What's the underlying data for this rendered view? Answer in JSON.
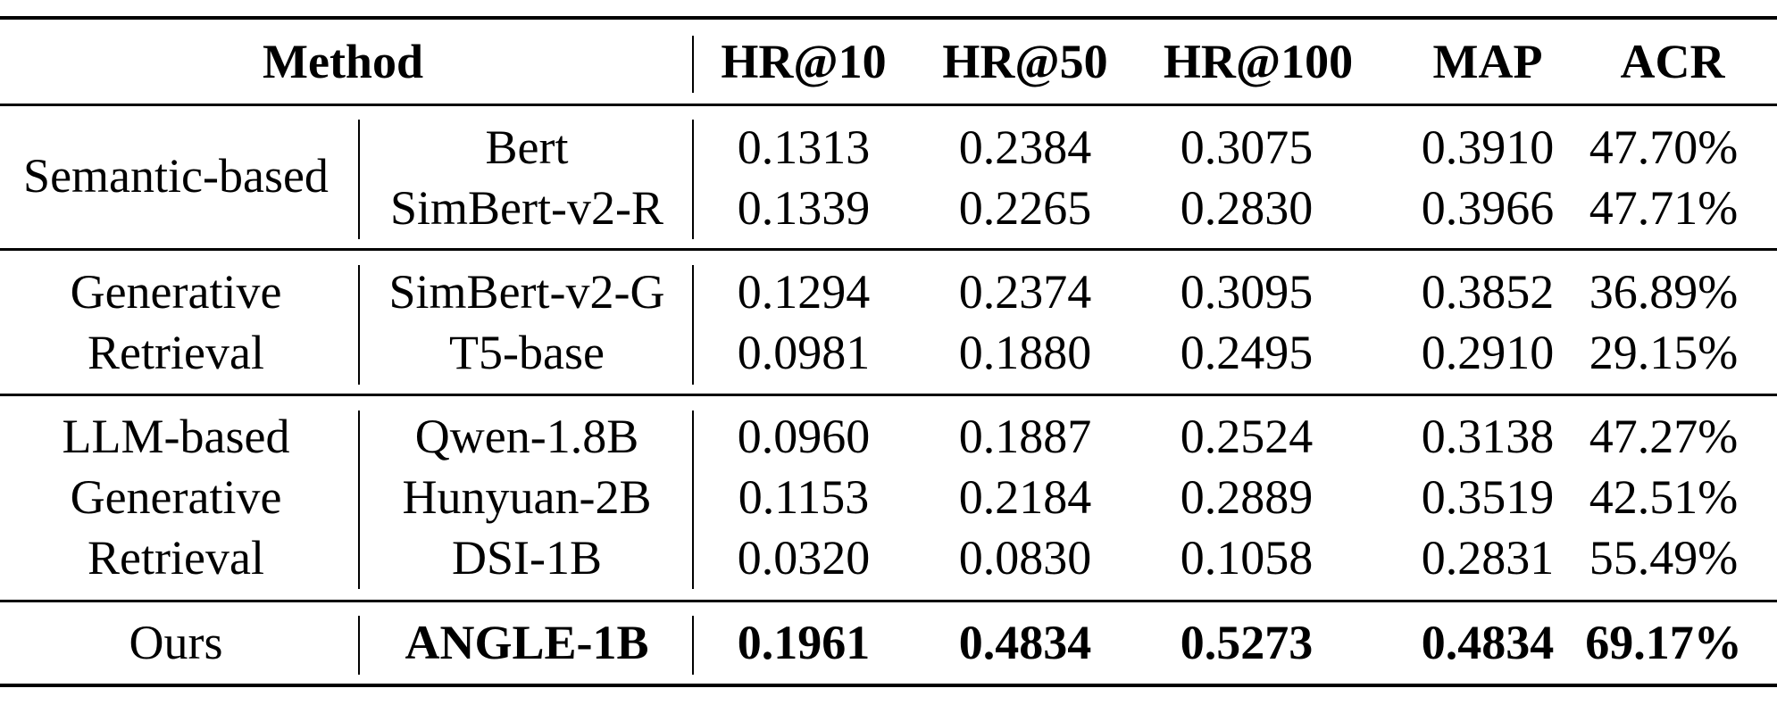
{
  "header": {
    "method": "Method",
    "metrics": [
      "HR@10",
      "HR@50",
      "HR@100",
      "MAP",
      "ACR"
    ]
  },
  "groups": [
    {
      "label_lines": [
        "Semantic-based"
      ],
      "rows": [
        {
          "model": "Bert",
          "values": [
            "0.1313",
            "0.2384",
            "0.3075",
            "0.3910",
            "47.70%"
          ]
        },
        {
          "model": "SimBert-v2-R",
          "values": [
            "0.1339",
            "0.2265",
            "0.2830",
            "0.3966",
            "47.71%"
          ]
        }
      ]
    },
    {
      "label_lines": [
        "Generative",
        "Retrieval"
      ],
      "rows": [
        {
          "model": "SimBert-v2-G",
          "values": [
            "0.1294",
            "0.2374",
            "0.3095",
            "0.3852",
            "36.89%"
          ]
        },
        {
          "model": "T5-base",
          "values": [
            "0.0981",
            "0.1880",
            "0.2495",
            "0.2910",
            "29.15%"
          ]
        }
      ]
    },
    {
      "label_lines": [
        "LLM-based",
        "Generative",
        "Retrieval"
      ],
      "rows": [
        {
          "model": "Qwen-1.8B",
          "values": [
            "0.0960",
            "0.1887",
            "0.2524",
            "0.3138",
            "47.27%"
          ]
        },
        {
          "model": "Hunyuan-2B",
          "values": [
            "0.1153",
            "0.2184",
            "0.2889",
            "0.3519",
            "42.51%"
          ]
        },
        {
          "model": "DSI-1B",
          "values": [
            "0.0320",
            "0.0830",
            "0.1058",
            "0.2831",
            "55.49%"
          ]
        }
      ]
    },
    {
      "label_lines": [
        "Ours"
      ],
      "rows": [
        {
          "model": "ANGLE-1B",
          "values": [
            "0.1961",
            "0.4834",
            "0.5273",
            "0.4834",
            "69.17%"
          ]
        }
      ]
    }
  ]
}
